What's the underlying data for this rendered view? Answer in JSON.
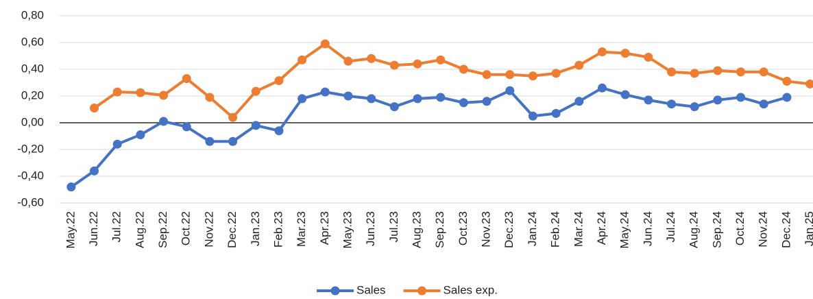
{
  "chart_data": {
    "type": "line",
    "categories": [
      "May.22",
      "Jun.22",
      "Jul.22",
      "Aug.22",
      "Sep.22",
      "Oct.22",
      "Nov.22",
      "Dec.22",
      "Jan.23",
      "Feb.23",
      "Mar.23",
      "Apr.23",
      "May.23",
      "Jun.23",
      "Jul.23",
      "Aug.23",
      "Sep.23",
      "Oct.23",
      "Nov.23",
      "Dec.23",
      "Jan.24",
      "Feb.24",
      "Mar.24",
      "Apr.24",
      "May.24",
      "Jun.24",
      "Jul.24",
      "Aug.24",
      "Sep.24",
      "Oct.24",
      "Nov.24",
      "Dec.24",
      "Jan.25"
    ],
    "series": [
      {
        "name": "Sales",
        "color": "#4472c4",
        "values": [
          -0.48,
          -0.36,
          -0.16,
          -0.09,
          0.01,
          -0.03,
          -0.14,
          -0.14,
          -0.02,
          -0.06,
          0.18,
          0.23,
          0.2,
          0.18,
          0.12,
          0.18,
          0.19,
          0.15,
          0.16,
          0.24,
          0.05,
          0.07,
          0.16,
          0.26,
          0.21,
          0.17,
          0.14,
          0.12,
          0.17,
          0.19,
          0.14,
          0.19,
          null
        ]
      },
      {
        "name": "Sales exp.",
        "color": "#ed7d31",
        "values": [
          null,
          0.11,
          0.23,
          0.225,
          0.205,
          0.33,
          0.19,
          0.04,
          0.235,
          0.315,
          0.47,
          0.59,
          0.46,
          0.48,
          0.43,
          0.44,
          0.47,
          0.4,
          0.36,
          0.36,
          0.35,
          0.37,
          0.43,
          0.53,
          0.52,
          0.49,
          0.38,
          0.37,
          0.39,
          0.38,
          0.38,
          0.31,
          0.29
        ]
      }
    ],
    "ylim": [
      -0.6,
      0.8
    ],
    "yticks": [
      {
        "value": -0.6,
        "label": "-0,60"
      },
      {
        "value": -0.4,
        "label": "-0,40"
      },
      {
        "value": -0.2,
        "label": "-0,20"
      },
      {
        "value": 0,
        "label": "0,00"
      },
      {
        "value": 0.2,
        "label": "0,20"
      },
      {
        "value": 0.4,
        "label": "0,40"
      },
      {
        "value": 0.6,
        "label": "0,60"
      },
      {
        "value": 0.8,
        "label": "0,80"
      }
    ],
    "grid": true,
    "legend": "bottom"
  }
}
